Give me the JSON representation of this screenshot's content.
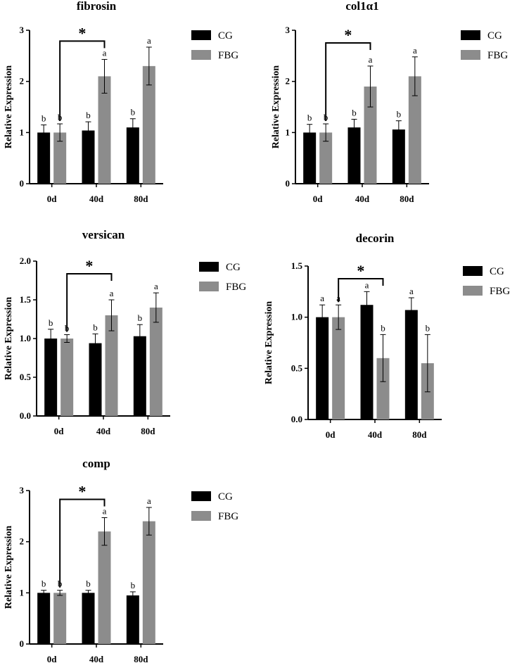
{
  "chart_data": [
    {
      "type": "bar",
      "title": "fibrosin",
      "ylabel": "Relative Expression",
      "xlabel": "",
      "categories": [
        "0d",
        "40d",
        "80d"
      ],
      "ylim": [
        0,
        3
      ],
      "yticks": [
        "0",
        "1",
        "2",
        "3"
      ],
      "series": [
        {
          "name": "CG",
          "color": "#000000",
          "values": [
            1.0,
            1.04,
            1.1
          ],
          "errors": [
            0.15,
            0.17,
            0.17
          ],
          "letters": [
            "b",
            "b",
            "b"
          ]
        },
        {
          "name": "FBG",
          "color": "#8c8c8c",
          "values": [
            1.0,
            2.1,
            2.3
          ],
          "errors": [
            0.17,
            0.33,
            0.37
          ],
          "letters": [
            "b",
            "a",
            "a"
          ]
        }
      ],
      "significance": {
        "label": "*",
        "from": "0d",
        "to": "40d"
      }
    },
    {
      "type": "bar",
      "title": "col1α1",
      "ylabel": "Relative Expression",
      "xlabel": "",
      "categories": [
        "0d",
        "40d",
        "80d"
      ],
      "ylim": [
        0,
        3
      ],
      "yticks": [
        "0",
        "1",
        "2",
        "3"
      ],
      "series": [
        {
          "name": "CG",
          "color": "#000000",
          "values": [
            1.0,
            1.1,
            1.06
          ],
          "errors": [
            0.16,
            0.16,
            0.17
          ],
          "letters": [
            "b",
            "b",
            "b"
          ]
        },
        {
          "name": "FBG",
          "color": "#8c8c8c",
          "values": [
            1.0,
            1.9,
            2.1
          ],
          "errors": [
            0.17,
            0.4,
            0.38
          ],
          "letters": [
            "b",
            "a",
            "a"
          ]
        }
      ],
      "significance": {
        "label": "*",
        "from": "0d",
        "to": "40d"
      }
    },
    {
      "type": "bar",
      "title": "versican",
      "ylabel": "Relative Expression",
      "xlabel": "",
      "categories": [
        "0d",
        "40d",
        "80d"
      ],
      "ylim": [
        0,
        2
      ],
      "yticks": [
        "0.0",
        "0.5",
        "1.0",
        "1.5",
        "2.0"
      ],
      "series": [
        {
          "name": "CG",
          "color": "#000000",
          "values": [
            1.0,
            0.94,
            1.03
          ],
          "errors": [
            0.12,
            0.12,
            0.15
          ],
          "letters": [
            "b",
            "b",
            "b"
          ]
        },
        {
          "name": "FBG",
          "color": "#8c8c8c",
          "values": [
            1.0,
            1.3,
            1.4
          ],
          "errors": [
            0.05,
            0.2,
            0.19
          ],
          "letters": [
            "b",
            "a",
            "a"
          ]
        }
      ],
      "significance": {
        "label": "*",
        "from": "0d",
        "to": "40d"
      }
    },
    {
      "type": "bar",
      "title": "decorin",
      "ylabel": "Relative Expression",
      "xlabel": "",
      "categories": [
        "0d",
        "40d",
        "80d"
      ],
      "ylim": [
        0,
        1.5
      ],
      "yticks": [
        "0.0",
        "0.5",
        "1.0",
        "1.5"
      ],
      "series": [
        {
          "name": "CG",
          "color": "#000000",
          "values": [
            1.0,
            1.12,
            1.07
          ],
          "errors": [
            0.12,
            0.13,
            0.12
          ],
          "letters": [
            "a",
            "a",
            "a"
          ]
        },
        {
          "name": "FBG",
          "color": "#8c8c8c",
          "values": [
            1.0,
            0.6,
            0.55
          ],
          "errors": [
            0.12,
            0.23,
            0.28
          ],
          "letters": [
            "a",
            "b",
            "b"
          ]
        }
      ],
      "significance": {
        "label": "*",
        "from": "0d",
        "to": "40d"
      }
    },
    {
      "type": "bar",
      "title": "comp",
      "ylabel": "Relative Expression",
      "xlabel": "",
      "categories": [
        "0d",
        "40d",
        "80d"
      ],
      "ylim": [
        0,
        3
      ],
      "yticks": [
        "0",
        "1",
        "2",
        "3"
      ],
      "series": [
        {
          "name": "CG",
          "color": "#000000",
          "values": [
            1.0,
            1.0,
            0.95
          ],
          "errors": [
            0.05,
            0.05,
            0.07
          ],
          "letters": [
            "b",
            "b",
            "b"
          ]
        },
        {
          "name": "FBG",
          "color": "#8c8c8c",
          "values": [
            1.0,
            2.2,
            2.4
          ],
          "errors": [
            0.05,
            0.27,
            0.27
          ],
          "letters": [
            "b",
            "a",
            "a"
          ]
        }
      ],
      "significance": {
        "label": "*",
        "from": "0d",
        "to": "40d"
      }
    }
  ]
}
